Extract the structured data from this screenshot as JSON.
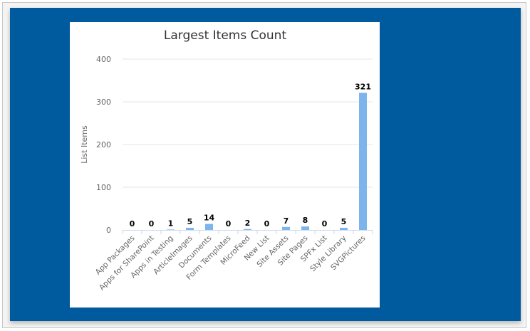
{
  "colors": {
    "panel_background": "#005a9e",
    "card_background": "#ffffff",
    "bar": "#7cb5ec",
    "grid": "#e6e6e6",
    "axis_text": "#666666",
    "title_text": "#333333",
    "data_label": "#000000"
  },
  "chart_data": {
    "type": "bar",
    "title": "Largest Items Count",
    "xlabel": "",
    "ylabel": "List Items",
    "ylim": [
      0,
      400
    ],
    "yticks": [
      0,
      100,
      200,
      300,
      400
    ],
    "grid": true,
    "legend": "none",
    "categories": [
      "App Packages",
      "Apps for SharePoint",
      "Apps in Testing",
      "ArticleImages",
      "Documents",
      "Form Templates",
      "MicroFeed",
      "New List",
      "Site Assets",
      "Site Pages",
      "SPFx List",
      "Style Library",
      "SVGPictures"
    ],
    "values": [
      0,
      0,
      1,
      5,
      14,
      0,
      2,
      0,
      7,
      8,
      0,
      5,
      321
    ],
    "data_labels": true
  }
}
